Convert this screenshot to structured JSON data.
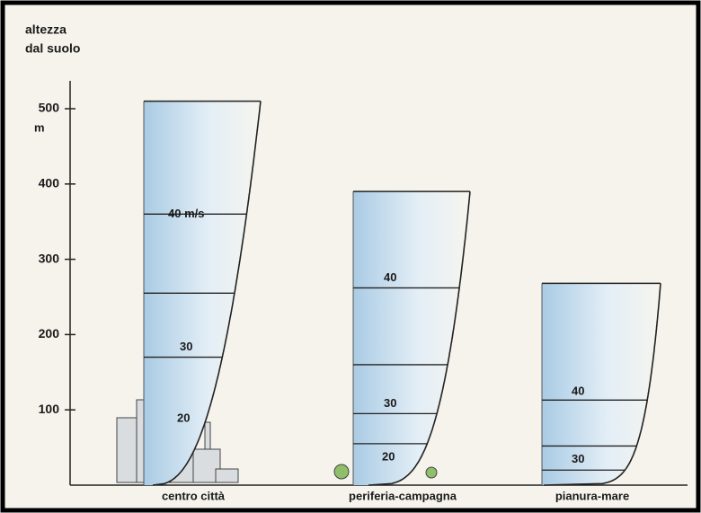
{
  "axis": {
    "label_lines": [
      "altezza",
      "dal suolo"
    ],
    "unit": "m",
    "ticks": [
      100,
      200,
      300,
      400,
      500
    ]
  },
  "profiles": [
    {
      "label": "centro città",
      "speed_labels": [
        "40 m/s",
        "30",
        "20"
      ]
    },
    {
      "label": "periferia-campagna",
      "speed_labels": [
        "40",
        "30",
        "20"
      ]
    },
    {
      "label": "pianura-mare",
      "speed_labels": [
        "40",
        "30"
      ]
    }
  ]
}
